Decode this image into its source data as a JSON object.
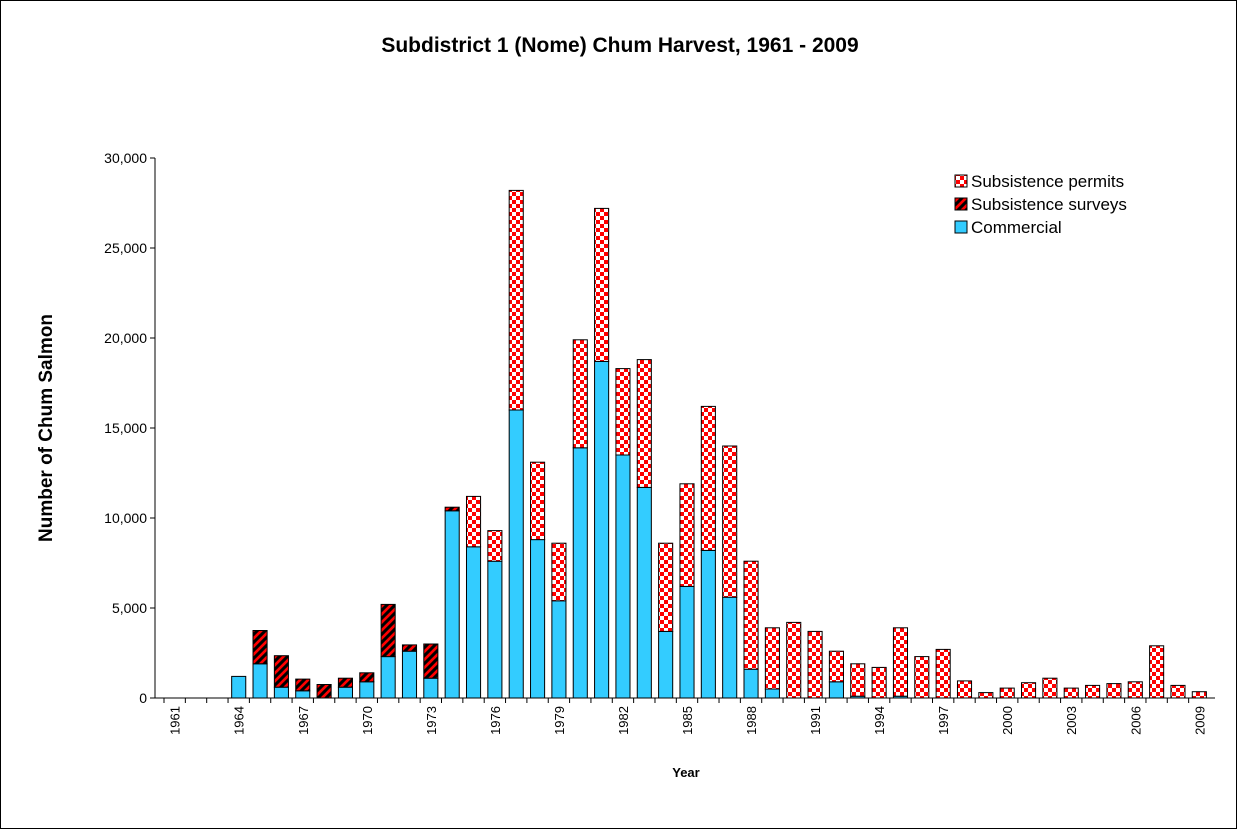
{
  "chart_data": {
    "type": "bar",
    "stacked": true,
    "title": "Subdistrict 1 (Nome) Chum Harvest, 1961 - 2009",
    "x_label": "Year",
    "y_label": "Number of Chum Salmon",
    "categories": [
      "1961",
      null,
      null,
      "1964",
      null,
      null,
      "1967",
      null,
      null,
      "1970",
      null,
      null,
      "1973",
      null,
      null,
      "1976",
      null,
      null,
      "1979",
      null,
      null,
      "1982",
      null,
      null,
      "1985",
      null,
      null,
      "1988",
      null,
      null,
      "1991",
      null,
      null,
      "1994",
      null,
      null,
      "1997",
      null,
      null,
      "2000",
      null,
      null,
      "2003",
      null,
      null,
      "2006",
      null,
      null,
      "2009"
    ],
    "series": [
      {
        "name": "Commercial",
        "color": "#33ccff",
        "values": [
          0,
          0,
          0,
          1200,
          1900,
          600,
          400,
          0,
          600,
          900,
          2300,
          2600,
          1100,
          10400,
          8400,
          7600,
          16000,
          8800,
          5400,
          13900,
          18700,
          13500,
          11700,
          3700,
          6200,
          8200,
          5600,
          1600,
          500,
          0,
          0,
          900,
          100,
          0,
          100,
          0,
          0,
          0,
          0,
          0,
          0,
          0,
          0,
          0,
          0,
          0,
          0,
          0,
          0
        ]
      },
      {
        "name": "Subsistence surveys",
        "color": "#ff0000",
        "pattern": "diagonal",
        "values": [
          0,
          0,
          0,
          0,
          1850,
          1750,
          650,
          750,
          500,
          500,
          2900,
          350,
          1900,
          200,
          0,
          0,
          0,
          0,
          0,
          0,
          0,
          0,
          0,
          0,
          0,
          0,
          0,
          0,
          0,
          0,
          0,
          0,
          0,
          0,
          0,
          0,
          0,
          0,
          0,
          0,
          0,
          0,
          0,
          0,
          0,
          0,
          0,
          0,
          0
        ]
      },
      {
        "name": "Subsistence permits",
        "color": "#ff0000",
        "pattern": "checker",
        "values": [
          0,
          0,
          0,
          0,
          0,
          0,
          0,
          0,
          0,
          0,
          0,
          0,
          0,
          0,
          2800,
          1700,
          12200,
          4300,
          3200,
          6000,
          8500,
          4800,
          7100,
          4900,
          5700,
          8000,
          8400,
          6000,
          3400,
          4200,
          3700,
          1700,
          1800,
          1700,
          3800,
          2300,
          2700,
          950,
          300,
          550,
          850,
          1100,
          550,
          700,
          800,
          900,
          2900,
          700,
          350
        ]
      }
    ],
    "ylim": [
      0,
      30000
    ],
    "yticks": [
      0,
      {
        "value": 5000,
        "label": "5,000"
      },
      {
        "value": 10000,
        "label": "10,000"
      },
      {
        "value": 15000,
        "label": "15,000"
      },
      {
        "value": 20000,
        "label": "20,000"
      },
      {
        "value": 25000,
        "label": "25,000"
      },
      {
        "value": 30000,
        "label": "30,000"
      }
    ],
    "legend": "top-right",
    "grid": false
  }
}
